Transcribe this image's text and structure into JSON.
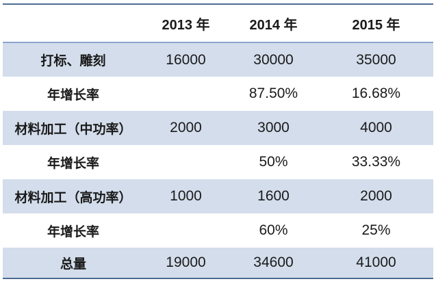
{
  "colors": {
    "band": "#d3ddeb",
    "border-dark": "#4c6b91",
    "separator": "#8ca6cc",
    "text": "#1a1a1a"
  },
  "chart_data": {
    "type": "table",
    "title": "",
    "columns": [
      "",
      "2013 年",
      "2014 年",
      "2015 年"
    ],
    "rows": [
      [
        "打标、雕刻",
        "16000",
        "30000",
        "35000"
      ],
      [
        "年增长率",
        "",
        "87.50%",
        "16.68%"
      ],
      [
        "材料加工（中功率）",
        "2000",
        "3000",
        "4000"
      ],
      [
        "年增长率",
        "",
        "50%",
        "33.33%"
      ],
      [
        "材料加工（高功率）",
        "1000",
        "1600",
        "2000"
      ],
      [
        "年增长率",
        "",
        "60%",
        "25%"
      ],
      [
        "总量",
        "19000",
        "34600",
        "41000"
      ]
    ],
    "layout_hints": {
      "banded_rows": "odd data rows filled light blue",
      "borders": "2px dark blue top and bottom, 2px medium blue under header",
      "alignment": "all cells centered, header and first column bold"
    }
  }
}
